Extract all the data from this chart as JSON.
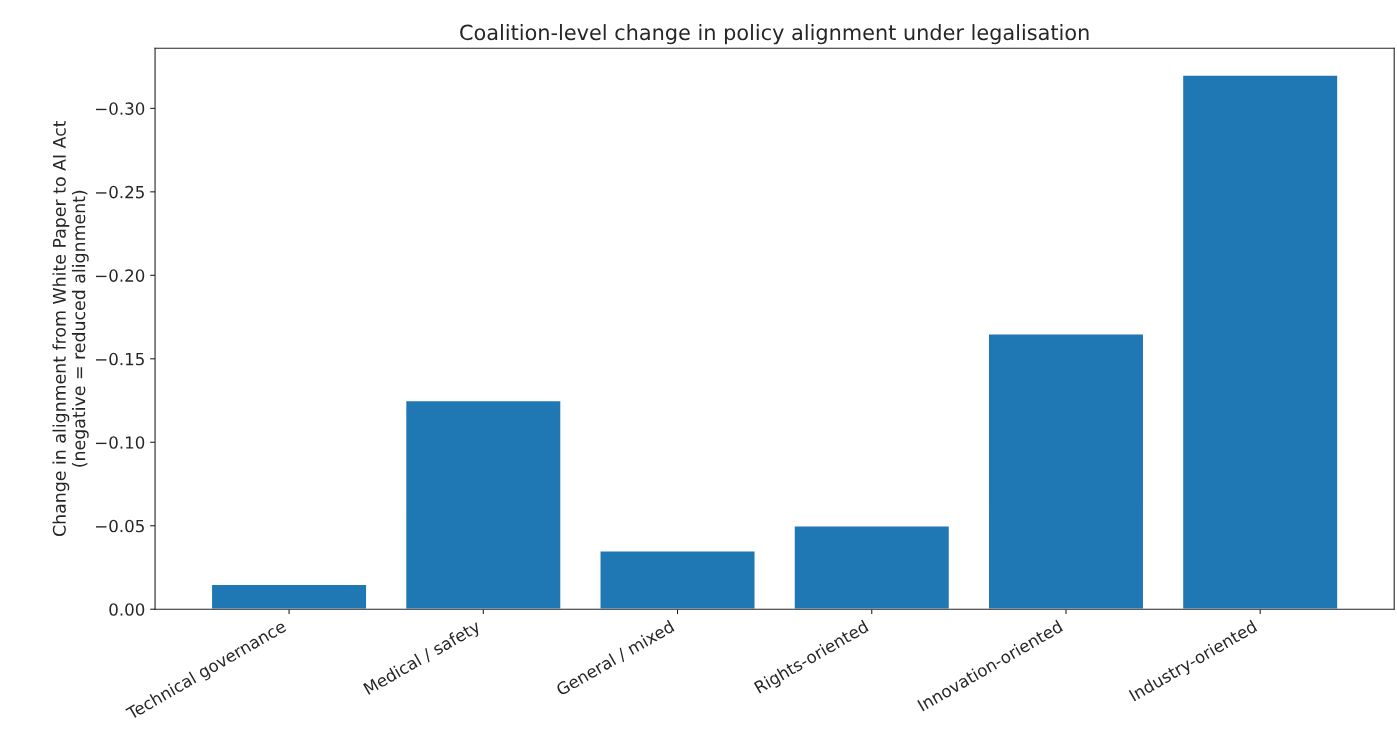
{
  "chart_data": {
    "type": "bar",
    "title": "Coalition-level change in policy alignment under legalisation",
    "ylabel": "Change in alignment from White Paper to AI Act\n(negative = reduced alignment)",
    "categories": [
      "Technical governance",
      "Medical / safety",
      "General / mixed",
      "Rights-oriented",
      "Innovation-oriented",
      "Industry-oriented"
    ],
    "values": [
      -0.015,
      -0.125,
      -0.035,
      -0.05,
      -0.165,
      -0.32
    ],
    "color": "#1f77b4",
    "ylim": [
      0,
      -0.336
    ],
    "yticks": [
      {
        "value": 0,
        "label": "0.00"
      },
      {
        "value": -0.05,
        "label": "−0.05"
      },
      {
        "value": -0.1,
        "label": "−0.10"
      },
      {
        "value": -0.15,
        "label": "−0.15"
      },
      {
        "value": -0.2,
        "label": "−0.20"
      },
      {
        "value": -0.25,
        "label": "−0.25"
      },
      {
        "value": -0.3,
        "label": "−0.30"
      }
    ],
    "grid": false
  }
}
